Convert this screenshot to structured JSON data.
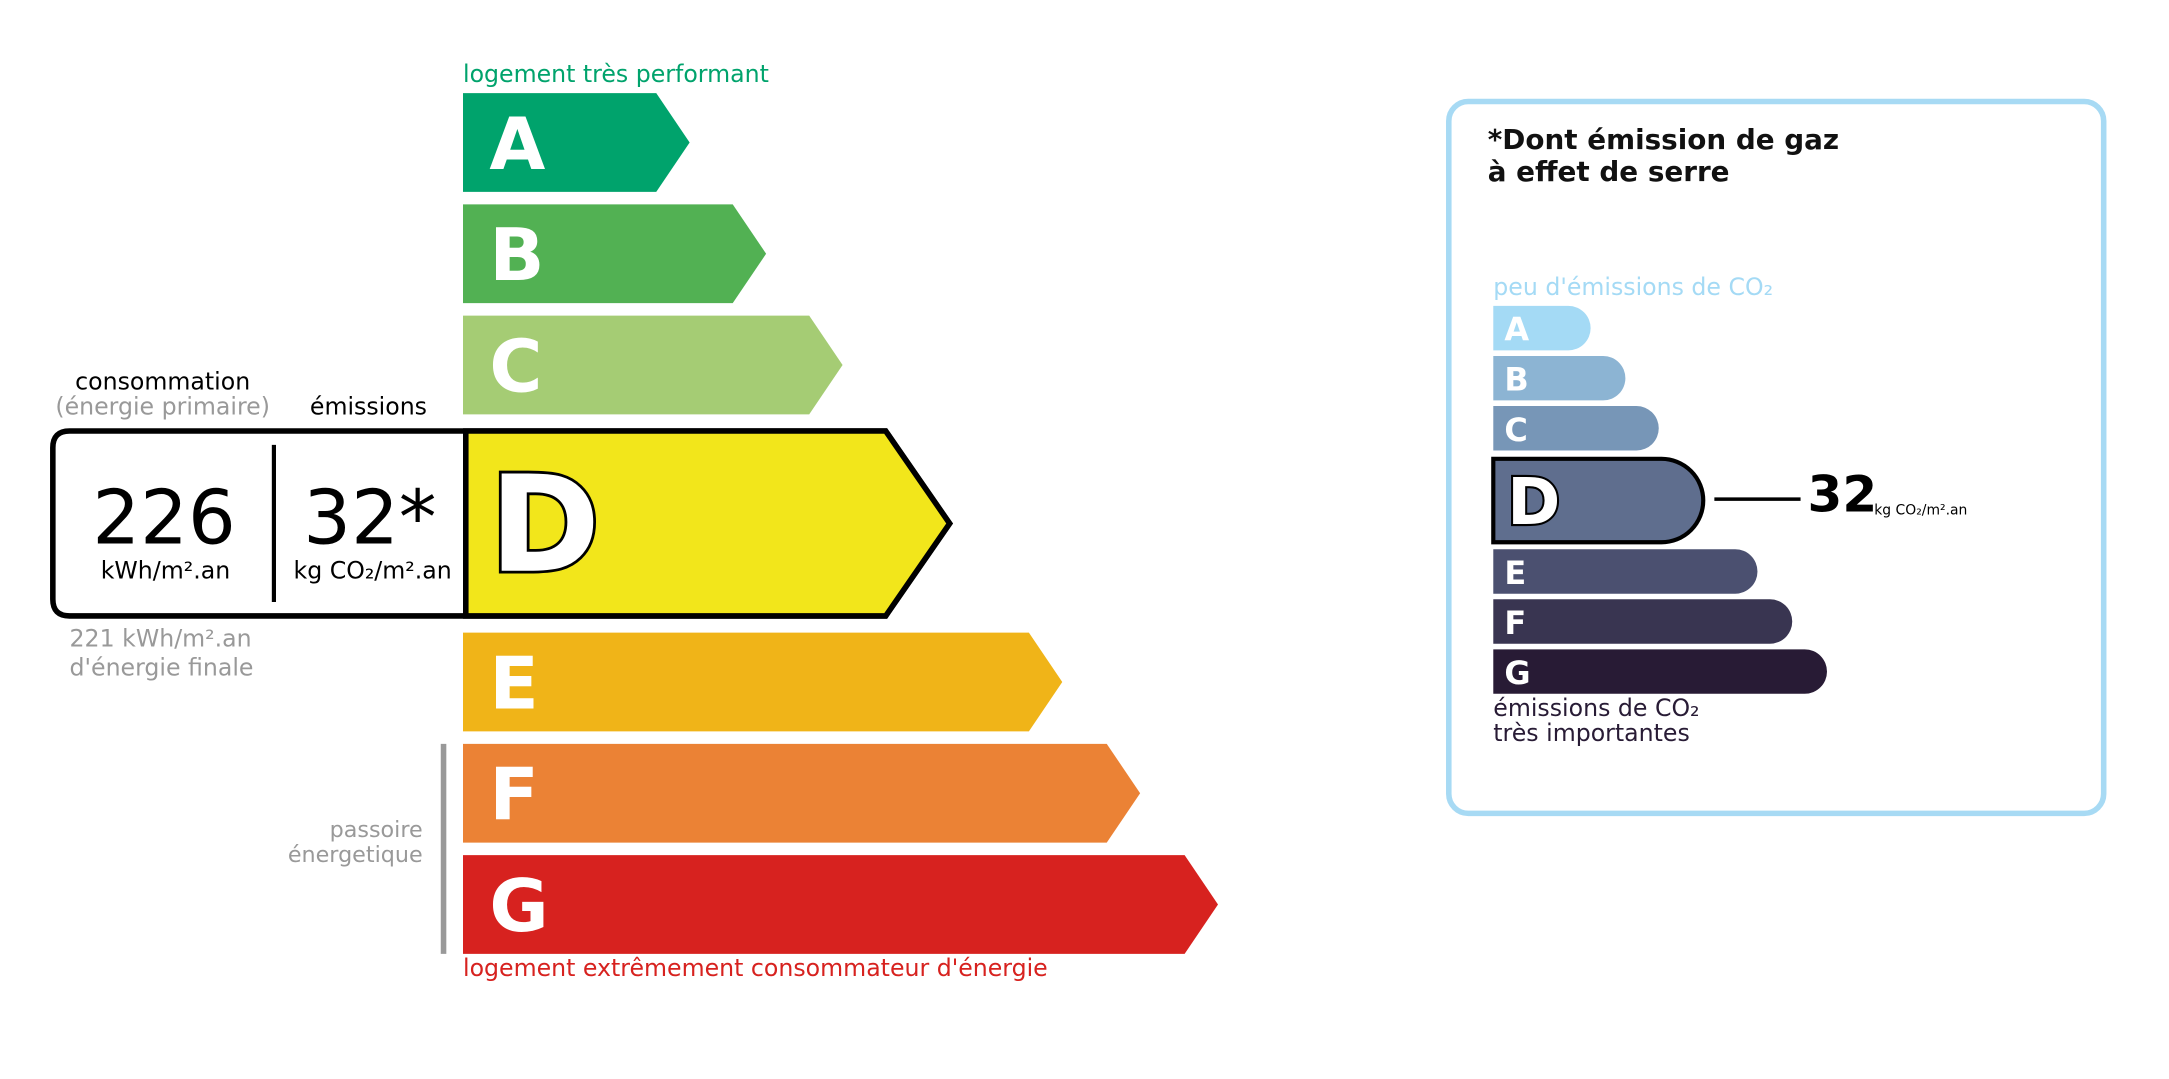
{
  "energy": {
    "top_label": "logement très performant",
    "bottom_label": "logement extrêmement consommateur d'énergie",
    "passoire_label_1": "passoire",
    "passoire_label_2": "énergetique",
    "current_class": "D",
    "classes": [
      {
        "letter": "A",
        "color": "#00a36c"
      },
      {
        "letter": "B",
        "color": "#52b153"
      },
      {
        "letter": "C",
        "color": "#a5cc74"
      },
      {
        "letter": "D",
        "color": "#f2e61b"
      },
      {
        "letter": "E",
        "color": "#f0b418"
      },
      {
        "letter": "F",
        "color": "#eb8235"
      },
      {
        "letter": "G",
        "color": "#d7221f"
      }
    ],
    "consumption_heading": "consommation",
    "consumption_subheading": "(énergie primaire)",
    "emissions_heading": "émissions",
    "consumption_value": "226",
    "consumption_unit": "kWh/m².an",
    "emissions_value": "32*",
    "emissions_unit": "kg CO₂/m².an",
    "final_energy_value": "221 kWh/m².an",
    "final_energy_label": "d'énergie finale"
  },
  "ges": {
    "title_line1": "*Dont émission de gaz",
    "title_line2": "à effet de serre",
    "top_label": "peu d'émissions de CO₂",
    "bottom_label_1": "émissions de CO₂",
    "bottom_label_2": "très importantes",
    "current_class": "D",
    "value": "32",
    "unit": "kg CO₂/m².an",
    "border_color": "#a7daf4",
    "classes": [
      {
        "letter": "A",
        "color": "#a4daf5"
      },
      {
        "letter": "B",
        "color": "#8cb4d3"
      },
      {
        "letter": "C",
        "color": "#7796b7"
      },
      {
        "letter": "D",
        "color": "#5f6e8e"
      },
      {
        "letter": "E",
        "color": "#4b5070"
      },
      {
        "letter": "F",
        "color": "#393551"
      },
      {
        "letter": "G",
        "color": "#281b35"
      }
    ]
  }
}
